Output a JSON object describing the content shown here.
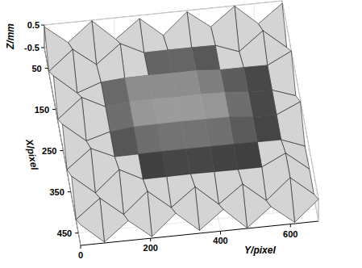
{
  "chart_data": {
    "type": "surface",
    "x_label": "X/pixel",
    "y_label": "Y/pixel",
    "z_label": "Z/mm",
    "x": [
      0,
      60,
      120,
      180,
      240,
      300,
      360,
      420,
      480
    ],
    "y": [
      0,
      68,
      136,
      204,
      272,
      340,
      408,
      476,
      544,
      612,
      680
    ],
    "z": [
      [
        0.42,
        -0.38,
        0.47,
        -0.45,
        0.36,
        -0.49,
        0.44,
        -0.33,
        0.48,
        -0.41,
        0.39
      ],
      [
        -0.46,
        0.41,
        -0.37,
        0.45,
        -0.06,
        -0.05,
        -0.05,
        -0.06,
        -0.44,
        0.38,
        -0.47
      ],
      [
        0.44,
        -0.43,
        -0.06,
        0.02,
        0.03,
        0.02,
        0.03,
        -0.05,
        -0.05,
        -0.06,
        0.46
      ],
      [
        -0.39,
        0.47,
        -0.05,
        0.06,
        0.07,
        0.06,
        0.07,
        0.05,
        -0.05,
        -0.06,
        -0.42
      ],
      [
        0.48,
        -0.36,
        -0.06,
        0.05,
        0.06,
        0.07,
        0.06,
        0.05,
        -0.05,
        -0.06,
        0.41
      ],
      [
        -0.43,
        0.4,
        -0.07,
        -0.06,
        -0.05,
        -0.05,
        -0.05,
        -0.05,
        -0.06,
        -0.07,
        -0.46
      ],
      [
        0.37,
        -0.47,
        0.45,
        -0.08,
        -0.07,
        -0.06,
        -0.07,
        -0.08,
        -0.08,
        0.43,
        -0.38
      ],
      [
        -0.45,
        0.39,
        -0.44,
        0.48,
        -0.35,
        0.46,
        -0.42,
        0.37,
        -0.47,
        0.44,
        -0.4
      ],
      [
        0.41,
        -0.46,
        0.38,
        -0.43,
        0.49,
        -0.37,
        0.45,
        -0.48,
        0.36,
        -0.44,
        0.47
      ]
    ],
    "xlim": [
      0,
      480
    ],
    "ylim": [
      0,
      680
    ],
    "zlim": [
      -0.5,
      0.5
    ],
    "xticks": [
      50,
      150,
      250,
      350,
      450
    ],
    "yticks": [
      0,
      200,
      400,
      600
    ],
    "zticks": [
      -0.5,
      0.5
    ],
    "grid": true
  }
}
